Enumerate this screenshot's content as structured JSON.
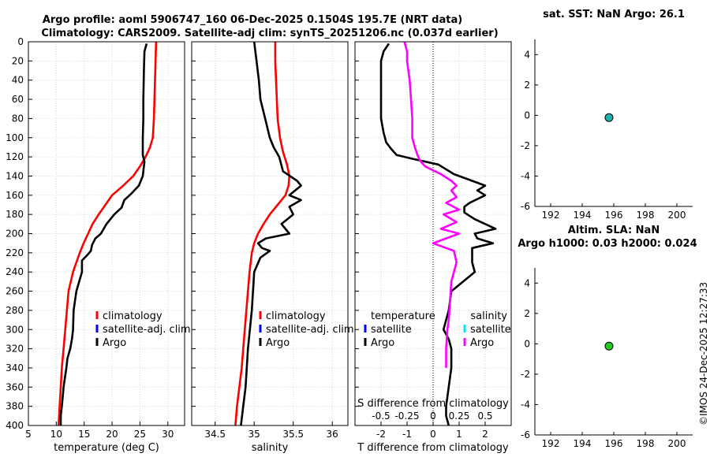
{
  "figure": {
    "title_line1": "Argo profile: aoml 5906747_160 06-Dec-2025 0.1504S 195.7E (NRT data)",
    "title_line2": "Climatology: CARS2009. Satellite-adj clim: synTS_20251206.nc (0.037d earlier)",
    "credit": "©IMOS 24-Dec-2025 12:27:33"
  },
  "colors": {
    "climatology": "#ff0000",
    "satellite": "#0000ff",
    "argo": "#000000",
    "sat_salinity": "#00e5ff",
    "argo_salinity": "#ff00ff",
    "marker_sst": "#20b2aa",
    "marker_sla": "#22cc22"
  },
  "chart_data": [
    {
      "id": "temperature",
      "type": "line",
      "xlabel": "temperature (deg C)",
      "xlim": [
        5,
        33
      ],
      "xticks": [
        5,
        10,
        15,
        20,
        25,
        30
      ],
      "ylim": [
        400,
        0
      ],
      "yticks": [
        0,
        20,
        40,
        60,
        80,
        100,
        120,
        140,
        160,
        180,
        200,
        220,
        240,
        260,
        280,
        300,
        320,
        340,
        360,
        380,
        400
      ],
      "grid": true,
      "legend": [
        "climatology",
        "satellite-adj. clim",
        "Argo"
      ],
      "series": [
        {
          "name": "climatology",
          "color": "#ff0000",
          "x": [
            27.9,
            27.8,
            27.7,
            27.6,
            27.5,
            27.3,
            26.8,
            26.0,
            25.0,
            23.8,
            22.0,
            20.0,
            18.8,
            17.6,
            16.5,
            15.7,
            14.9,
            14.2,
            13.6,
            13.0,
            12.6,
            12.2,
            11.9,
            11.6,
            11.3,
            11.0,
            10.7,
            10.4
          ],
          "depth": [
            0,
            20,
            40,
            60,
            80,
            100,
            110,
            120,
            130,
            140,
            150,
            160,
            170,
            180,
            190,
            200,
            210,
            220,
            230,
            240,
            250,
            260,
            280,
            300,
            320,
            340,
            370,
            400
          ]
        },
        {
          "name": "Argo",
          "color": "#000000",
          "x": [
            26.2,
            25.8,
            25.7,
            25.6,
            25.6,
            25.5,
            25.5,
            25.8,
            25.5,
            24.8,
            23.5,
            22.2,
            21.7,
            20.4,
            19.0,
            18.0,
            17.0,
            16.4,
            16.2,
            15.6,
            14.6,
            14.6,
            13.6,
            13.1,
            13.0,
            12.8,
            12.5,
            12.0,
            11.8,
            11.3,
            11.0,
            10.8,
            10.8
          ],
          "depth": [
            2,
            10,
            30,
            60,
            80,
            100,
            118,
            125,
            140,
            150,
            158,
            165,
            173,
            180,
            190,
            200,
            205,
            212,
            218,
            222,
            228,
            240,
            260,
            280,
            300,
            310,
            320,
            330,
            340,
            360,
            380,
            390,
            400
          ]
        }
      ]
    },
    {
      "id": "salinity",
      "type": "line",
      "xlabel": "salinity",
      "xlim": [
        34.2,
        36.2
      ],
      "xticks": [
        34.5,
        35,
        35.5,
        36
      ],
      "ylim": [
        400,
        0
      ],
      "grid": true,
      "legend": [
        "climatology",
        "satellite-adj. clim",
        "Argo"
      ],
      "series": [
        {
          "name": "climatology",
          "color": "#ff0000",
          "x": [
            35.27,
            35.27,
            35.28,
            35.29,
            35.3,
            35.33,
            35.37,
            35.42,
            35.45,
            35.44,
            35.4,
            35.3,
            35.2,
            35.12,
            35.05,
            35.0,
            34.97,
            34.94,
            34.92,
            34.9,
            34.88,
            34.86,
            34.84,
            34.81,
            34.78,
            34.76
          ],
          "depth": [
            0,
            20,
            40,
            60,
            80,
            100,
            115,
            128,
            140,
            150,
            160,
            170,
            180,
            190,
            200,
            210,
            220,
            240,
            260,
            280,
            300,
            320,
            340,
            360,
            380,
            400
          ]
        },
        {
          "name": "Argo",
          "color": "#000000",
          "x": [
            35.0,
            35.03,
            35.06,
            35.08,
            35.14,
            35.2,
            35.25,
            35.32,
            35.37,
            35.55,
            35.6,
            35.45,
            35.6,
            35.45,
            35.5,
            35.35,
            35.45,
            35.15,
            35.05,
            35.1,
            35.2,
            35.08,
            35.0,
            34.97,
            34.92,
            34.89,
            34.86,
            34.83
          ],
          "depth": [
            0,
            20,
            40,
            60,
            80,
            100,
            110,
            120,
            135,
            145,
            150,
            160,
            165,
            172,
            180,
            190,
            200,
            205,
            210,
            215,
            218,
            225,
            240,
            280,
            320,
            360,
            380,
            400
          ]
        }
      ]
    },
    {
      "id": "difference",
      "type": "line",
      "xlabel": "T difference from climatology",
      "xlabel_top": "S difference from climatology",
      "xlim": [
        -3,
        3
      ],
      "xticks": [
        -2,
        -1,
        0,
        1,
        2
      ],
      "s_ticks": [
        "-0.5",
        "-0.25",
        "0",
        "0.25",
        "0.5"
      ],
      "s_tick_T_equiv": [
        -2,
        -1,
        0,
        1,
        2
      ],
      "ylim": [
        400,
        0
      ],
      "grid": true,
      "legend_temperature_title": "temperature",
      "legend_salinity_title": "salinity",
      "legend_temperature": [
        "satellite",
        "Argo"
      ],
      "legend_salinity": [
        "satellite",
        "Argo"
      ],
      "series": [
        {
          "name": "T difference (Argo)",
          "color": "#000000",
          "x": [
            -1.7,
            -1.9,
            -2.0,
            -2.0,
            -2.0,
            -2.0,
            -1.9,
            -1.8,
            -1.6,
            -1.4,
            -0.8,
            0.2,
            0.8,
            1.5,
            2.0,
            1.7,
            2.0,
            1.4,
            1.2,
            1.2,
            1.6,
            2.4,
            1.6,
            1.7,
            2.3,
            1.5,
            1.5,
            1.6,
            0.7,
            0.6,
            0.4,
            0.6,
            0.7,
            0.7,
            0.6,
            0.5,
            0.5,
            0.6
          ],
          "depth": [
            2,
            10,
            20,
            40,
            60,
            80,
            95,
            105,
            112,
            118,
            122,
            128,
            138,
            145,
            150,
            155,
            160,
            168,
            172,
            178,
            185,
            195,
            200,
            205,
            210,
            215,
            230,
            240,
            260,
            280,
            300,
            310,
            320,
            340,
            360,
            380,
            390,
            400
          ]
        },
        {
          "name": "S difference (Argo)",
          "color": "#ff00ff",
          "x": [
            -1.1,
            -1.0,
            -1.0,
            -0.9,
            -0.85,
            -0.8,
            -0.8,
            -0.7,
            -0.6,
            -0.5,
            -0.3,
            0.3,
            0.7,
            0.9,
            0.7,
            0.9,
            0.5,
            1.0,
            0.4,
            0.9,
            0.3,
            1.0,
            0.0,
            0.8,
            0.9,
            0.7,
            0.65,
            0.6,
            0.55,
            0.5,
            0.5
          ],
          "depth": [
            0,
            10,
            20,
            40,
            60,
            80,
            100,
            110,
            118,
            124,
            130,
            138,
            145,
            150,
            155,
            162,
            168,
            175,
            180,
            188,
            195,
            200,
            210,
            218,
            230,
            250,
            270,
            290,
            300,
            320,
            340
          ]
        }
      ]
    },
    {
      "id": "sst",
      "type": "scatter",
      "title": "sat. SST: NaN Argo: 26.1",
      "xlim": [
        191,
        201
      ],
      "xticks": [
        192,
        194,
        196,
        198,
        200
      ],
      "ylim": [
        -6,
        5
      ],
      "yticks": [
        4,
        2,
        0,
        -2,
        -4,
        -6
      ],
      "grid": false,
      "points": [
        {
          "x": 195.7,
          "y": -0.15
        }
      ]
    },
    {
      "id": "sla",
      "type": "scatter",
      "title_line1": "Altim. SLA: NaN",
      "title_line2": "Argo h1000: 0.03 h2000: 0.024",
      "xlim": [
        191,
        201
      ],
      "xticks": [
        192,
        194,
        196,
        198,
        200
      ],
      "ylim": [
        -6,
        5
      ],
      "yticks": [
        4,
        2,
        0,
        -2,
        -4,
        -6
      ],
      "grid": false,
      "points": [
        {
          "x": 195.7,
          "y": -0.15
        }
      ]
    }
  ]
}
